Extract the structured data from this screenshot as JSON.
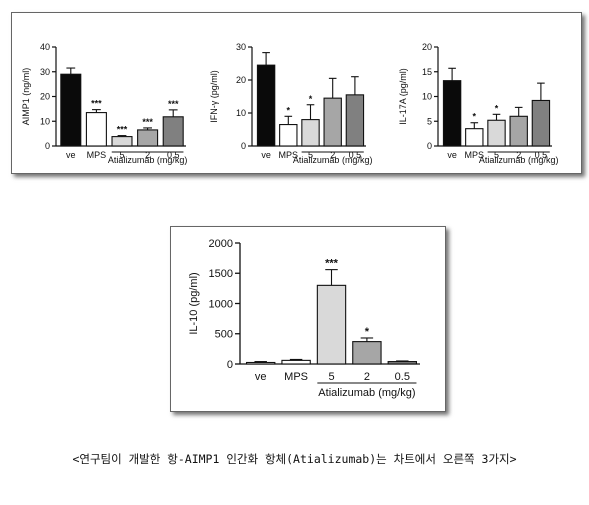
{
  "chart_data": [
    {
      "type": "bar",
      "categories": [
        "ve",
        "MPS",
        "5",
        "2",
        "0.5"
      ],
      "values": [
        29,
        13.5,
        3.8,
        6.5,
        11.8
      ],
      "errors": [
        2.5,
        1.2,
        0.4,
        0.8,
        2.8
      ],
      "significance": [
        "",
        "***",
        "***",
        "***",
        "***"
      ],
      "ylabel": "AIMP1 (ng/ml)",
      "xlabel": "Atializumab (mg/kg)",
      "ylim": [
        0,
        40
      ],
      "yticks": [
        "0",
        "10",
        "20",
        "30",
        "40"
      ],
      "bar_colors": [
        "#0a0a0a",
        "#ffffff",
        "#d9d9d9",
        "#a6a6a6",
        "#808080"
      ]
    },
    {
      "type": "bar",
      "categories": [
        "ve",
        "MPS",
        "5",
        "2",
        "0.5"
      ],
      "values": [
        24.5,
        6.5,
        8,
        14.5,
        15.5
      ],
      "errors": [
        3.8,
        2.5,
        4.5,
        6,
        5.5
      ],
      "significance": [
        "",
        "*",
        "*",
        "",
        ""
      ],
      "ylabel": "IFN-γ (pg/ml)",
      "xlabel": "Atializumab (mg/kg)",
      "ylim": [
        0,
        30
      ],
      "yticks": [
        "0",
        "10",
        "20",
        "30"
      ],
      "bar_colors": [
        "#0a0a0a",
        "#ffffff",
        "#d9d9d9",
        "#a6a6a6",
        "#808080"
      ]
    },
    {
      "type": "bar",
      "categories": [
        "ve",
        "MPS",
        "5",
        "2",
        "0.5"
      ],
      "values": [
        13.2,
        3.5,
        5.2,
        6,
        9.2
      ],
      "errors": [
        2.5,
        1.2,
        1.2,
        1.8,
        3.5
      ],
      "significance": [
        "",
        "*",
        "*",
        "",
        ""
      ],
      "ylabel": "IL-17A (pg/ml)",
      "xlabel": "Atializumab (mg/kg)",
      "ylim": [
        0,
        20
      ],
      "yticks": [
        "0",
        "5",
        "10",
        "15",
        "20"
      ],
      "bar_colors": [
        "#0a0a0a",
        "#ffffff",
        "#d9d9d9",
        "#a6a6a6",
        "#808080"
      ]
    },
    {
      "type": "bar",
      "categories": [
        "ve",
        "MPS",
        "5",
        "2",
        "0.5"
      ],
      "values": [
        25,
        60,
        1300,
        370,
        40
      ],
      "errors": [
        15,
        15,
        260,
        60,
        10
      ],
      "significance": [
        "",
        "",
        "***",
        "*",
        ""
      ],
      "ylabel": "IL-10 (pg/ml)",
      "xlabel": "Atializumab (mg/kg)",
      "ylim": [
        0,
        2000
      ],
      "yticks": [
        "0",
        "500",
        "1000",
        "1500",
        "2000"
      ],
      "bar_colors": [
        "#ffffff",
        "#ffffff",
        "#d9d9d9",
        "#a6a6a6",
        "#808080"
      ]
    }
  ],
  "caption": "<연구팀이 개발한 항-AIMP1 인간화 항체(Atializumab)는 차트에서 오른쪽 3가지>"
}
